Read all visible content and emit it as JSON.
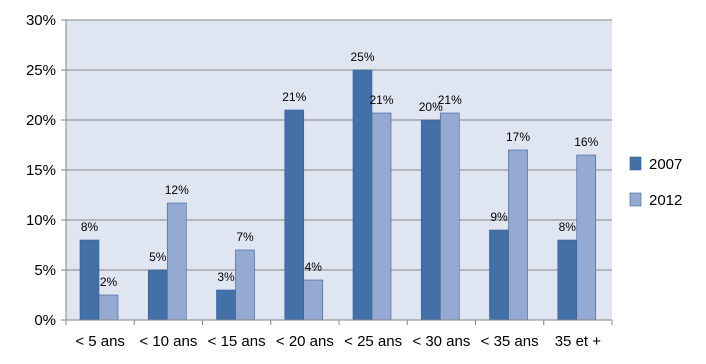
{
  "chart_data": {
    "type": "bar",
    "categories": [
      "< 5 ans",
      "< 10 ans",
      "< 15 ans",
      "< 20 ans",
      "< 25 ans",
      "< 30 ans",
      "< 35 ans",
      "35 et +"
    ],
    "series": [
      {
        "name": "2007",
        "values": [
          8,
          5,
          3,
          21,
          25,
          20,
          9,
          8
        ],
        "labels": [
          "8%",
          "5%",
          "3%",
          "21%",
          "25%",
          "20%",
          "9%",
          "8%"
        ],
        "color": "#4470a8"
      },
      {
        "name": "2012",
        "values": [
          2.5,
          11.7,
          7,
          4,
          20.7,
          20.7,
          17,
          16.5
        ],
        "labels": [
          "2%",
          "12%",
          "7%",
          "4%",
          "21%",
          "21%",
          "17%",
          "16%"
        ],
        "color": "#94aad3"
      }
    ],
    "yticks": [
      0,
      5,
      10,
      15,
      20,
      25,
      30
    ],
    "ytick_labels": [
      "0%",
      "5%",
      "10%",
      "15%",
      "20%",
      "25%",
      "30%"
    ],
    "ylim": [
      0,
      30
    ],
    "grid": true,
    "plot_background": "#dfe6f2",
    "legend_position": "right",
    "title": "",
    "xlabel": "",
    "ylabel": ""
  }
}
